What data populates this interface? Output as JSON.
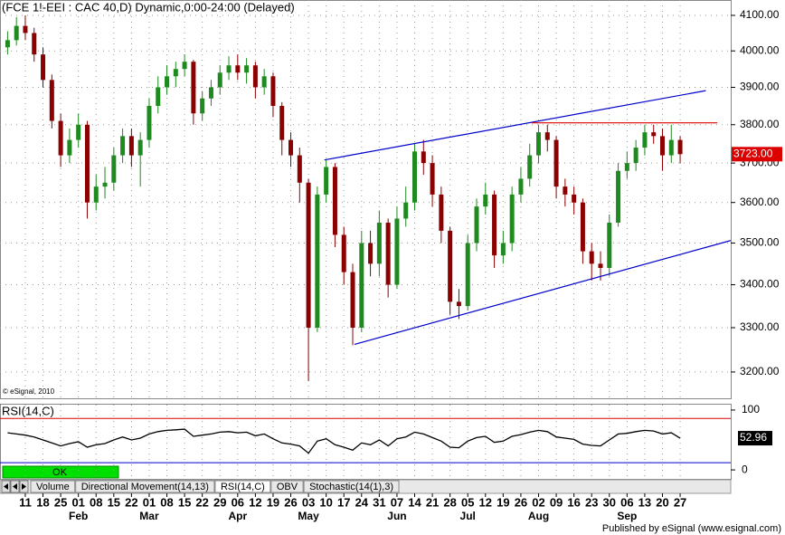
{
  "chart_data": [
    {
      "type": "candlestick",
      "title": "(FCE 1!-EEI : CAC 40,D) Dynamic,0:00-24:00 (Delayed)",
      "copyright": "© eSignal, 2010",
      "categories": [
        null,
        null,
        "11",
        null,
        "18",
        null,
        "25",
        null,
        "01",
        null,
        "08",
        null,
        "15",
        null,
        "22",
        null,
        "01",
        null,
        "08",
        null,
        "15",
        null,
        "22",
        null,
        "29",
        null,
        "06",
        null,
        "12",
        null,
        "19",
        null,
        "26",
        null,
        "03",
        null,
        "10",
        null,
        "17",
        null,
        "24",
        null,
        "31",
        null,
        "07",
        null,
        "14",
        null,
        "21",
        null,
        "28",
        null,
        "05",
        null,
        "12",
        null,
        "19",
        null,
        "26",
        null,
        "02",
        null,
        "09",
        null,
        "16",
        null,
        "23",
        null,
        "30",
        null,
        "06",
        null,
        "13",
        null,
        "20",
        null,
        "27"
      ],
      "months": [
        null,
        null,
        null,
        null,
        null,
        null,
        null,
        null,
        "Feb",
        null,
        null,
        null,
        null,
        null,
        null,
        null,
        "Mar",
        null,
        null,
        null,
        null,
        null,
        null,
        null,
        null,
        null,
        "Apr",
        null,
        null,
        null,
        null,
        null,
        null,
        null,
        "May",
        null,
        null,
        null,
        null,
        null,
        null,
        null,
        null,
        null,
        "Jun",
        null,
        null,
        null,
        null,
        null,
        null,
        null,
        "Jul",
        null,
        null,
        null,
        null,
        null,
        null,
        null,
        "Aug",
        null,
        null,
        null,
        null,
        null,
        null,
        null,
        null,
        null,
        "Sep",
        null,
        null,
        null,
        null,
        null,
        null
      ],
      "open": [
        4010,
        4030,
        4070,
        4050,
        3990,
        3920,
        3810,
        3720,
        3760,
        3800,
        3600,
        3640,
        3650,
        3720,
        3770,
        3720,
        3760,
        3850,
        3900,
        3930,
        3950,
        3970,
        3830,
        3870,
        3900,
        3940,
        3960,
        3940,
        3960,
        3900,
        3930,
        3850,
        3760,
        3720,
        3650,
        3300,
        3620,
        3690,
        3520,
        3430,
        3300,
        3500,
        3450,
        3550,
        3400,
        3560,
        3600,
        3730,
        3700,
        3620,
        3530,
        3360,
        3350,
        3500,
        3590,
        3620,
        3470,
        3500,
        3620,
        3660,
        3720,
        3780,
        3760,
        3640,
        3620,
        3600,
        3480,
        3450,
        3440,
        3550,
        3680,
        3700,
        3740,
        3780,
        3770,
        3720,
        3760
      ],
      "high": [
        4055,
        4095,
        4100,
        4065,
        4010,
        3935,
        3830,
        3790,
        3830,
        3810,
        3670,
        3690,
        3740,
        3790,
        3790,
        3780,
        3870,
        3930,
        3960,
        3970,
        3990,
        3975,
        3890,
        3920,
        3960,
        3985,
        3990,
        3980,
        3970,
        3950,
        3940,
        3860,
        3780,
        3740,
        3660,
        3640,
        3710,
        3700,
        3540,
        3450,
        3530,
        3530,
        3580,
        3560,
        3590,
        3640,
        3750,
        3760,
        3720,
        3640,
        3540,
        3390,
        3520,
        3610,
        3650,
        3630,
        3530,
        3640,
        3690,
        3750,
        3800,
        3800,
        3770,
        3660,
        3640,
        3610,
        3500,
        3480,
        3570,
        3700,
        3730,
        3760,
        3800,
        3800,
        3790,
        3800,
        3770
      ],
      "low": [
        3990,
        4015,
        4030,
        3970,
        3900,
        3790,
        3690,
        3700,
        3740,
        3560,
        3580,
        3610,
        3630,
        3700,
        3690,
        3640,
        3740,
        3830,
        3880,
        3900,
        3930,
        3800,
        3810,
        3850,
        3880,
        3920,
        3920,
        3910,
        3870,
        3880,
        3820,
        3720,
        3690,
        3600,
        3180,
        3290,
        3600,
        3490,
        3400,
        3260,
        3290,
        3420,
        3420,
        3370,
        3390,
        3540,
        3580,
        3670,
        3590,
        3500,
        3330,
        3320,
        3340,
        3480,
        3570,
        3440,
        3450,
        3480,
        3600,
        3640,
        3700,
        3730,
        3610,
        3590,
        3570,
        3450,
        3410,
        3410,
        3420,
        3540,
        3660,
        3680,
        3720,
        3750,
        3680,
        3700,
        3700
      ],
      "close": [
        4030,
        4070,
        4050,
        3990,
        3920,
        3810,
        3720,
        3760,
        3800,
        3600,
        3640,
        3650,
        3720,
        3770,
        3720,
        3760,
        3850,
        3900,
        3930,
        3950,
        3970,
        3830,
        3870,
        3900,
        3940,
        3960,
        3940,
        3960,
        3900,
        3930,
        3850,
        3760,
        3720,
        3650,
        3300,
        3620,
        3690,
        3520,
        3430,
        3300,
        3500,
        3450,
        3550,
        3400,
        3560,
        3600,
        3730,
        3700,
        3620,
        3530,
        3360,
        3350,
        3500,
        3590,
        3620,
        3470,
        3500,
        3620,
        3660,
        3720,
        3780,
        3760,
        3640,
        3620,
        3600,
        3480,
        3450,
        3440,
        3550,
        3680,
        3700,
        3740,
        3780,
        3770,
        3720,
        3760,
        3723
      ],
      "last_value_label": "3723.00",
      "up_color": "#1f8a1f",
      "down_color": "#8b0000",
      "ylim": [
        3142,
        4144
      ],
      "log": true,
      "grid": true,
      "yticks": [
        {
          "value": 3200,
          "label": "3200.00"
        },
        {
          "value": 3300,
          "label": "3300.00"
        },
        {
          "value": 3400,
          "label": "3400.00"
        },
        {
          "value": 3500,
          "label": "3500.00"
        },
        {
          "value": 3600,
          "label": "3600.00"
        },
        {
          "value": 3700,
          "label": "3700.00"
        },
        {
          "value": 3800,
          "label": "3800.00"
        },
        {
          "value": 3900,
          "label": "3900.00"
        },
        {
          "value": 4000,
          "label": "4000.00"
        },
        {
          "value": 4100,
          "label": "4100.00"
        }
      ],
      "trendlines": [
        {
          "color": "#0000cc",
          "start": [
            35.8,
            3708
          ],
          "end": [
            78.9,
            3891
          ]
        },
        {
          "color": "#0000cc",
          "start": [
            39.2,
            3262
          ],
          "end": [
            81.7,
            3506
          ]
        },
        {
          "color": "#dd0000",
          "start": [
            59.2,
            3805
          ],
          "end": [
            80.2,
            3805
          ]
        }
      ]
    },
    {
      "type": "line",
      "title": "RSI(14,C)",
      "color": "#000000",
      "values": [
        62,
        60,
        58,
        55,
        50,
        45,
        40,
        44,
        47,
        38,
        42,
        44,
        50,
        55,
        50,
        53,
        60,
        64,
        66,
        67,
        68,
        56,
        58,
        60,
        63,
        64,
        62,
        63,
        57,
        60,
        52,
        45,
        43,
        40,
        28,
        48,
        52,
        42,
        38,
        33,
        45,
        42,
        50,
        40,
        52,
        55,
        63,
        60,
        54,
        48,
        38,
        37,
        48,
        54,
        56,
        46,
        48,
        56,
        59,
        63,
        66,
        64,
        55,
        53,
        51,
        43,
        41,
        40,
        50,
        60,
        61,
        64,
        66,
        65,
        60,
        62,
        52.96
      ],
      "last_value_label": "52.96",
      "ylim": [
        -15,
        109
      ],
      "yticks": [
        100,
        0
      ],
      "levels": [
        {
          "value": 86,
          "color": "#dd0000"
        },
        {
          "value": 12,
          "color": "#0000cc"
        }
      ]
    }
  ],
  "ui": {
    "status": "OK",
    "tabs": [
      "Volume",
      "Directional Movement(14,13)",
      "RSI(14,C)",
      "OBV",
      "Stochastic(14(1),3)"
    ],
    "footer": "Published by eSignal (www.esignal.com)"
  }
}
